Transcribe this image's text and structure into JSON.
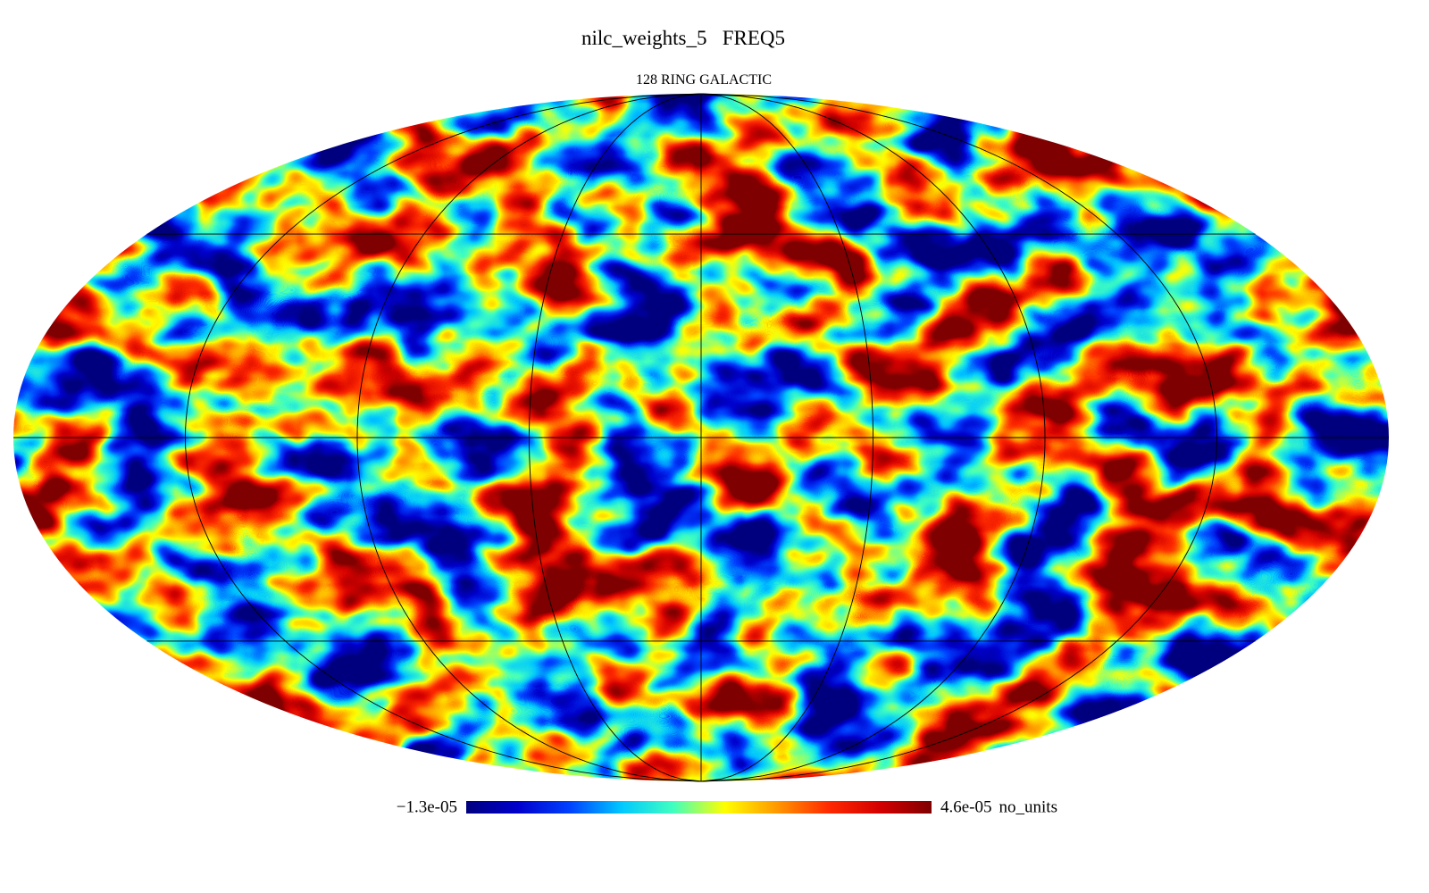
{
  "chart_data": {
    "type": "mollweide",
    "title": "nilc_weights_5   FREQ5",
    "subtitle": "128 RING GALACTIC",
    "grid": true,
    "colormap": [
      "#00007f",
      "#0000cc",
      "#0040ff",
      "#00c8ff",
      "#40ffc0",
      "#ffff00",
      "#ff9900",
      "#ff2a00",
      "#d40000",
      "#7f0000"
    ],
    "colorbar": {
      "min": {
        "value": -1.3e-05,
        "label": "−1.3e-05"
      },
      "max": {
        "value": 4.6e-05,
        "label": "4.6e-05"
      },
      "unit": "no_units"
    }
  }
}
